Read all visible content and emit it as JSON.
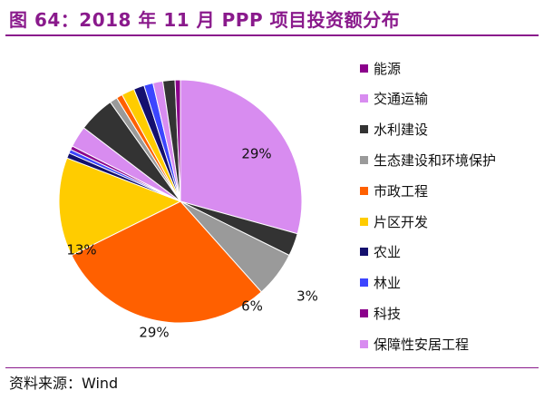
{
  "title": "图 64：2018 年 11 月 PPP 项目投资额分布",
  "source": "资料来源：Wind",
  "chart_data": {
    "type": "pie",
    "title": "图 64：2018 年 11 月 PPP 项目投资额分布",
    "start_angle_deg": 0,
    "direction": "clockwise",
    "legend_position": "right",
    "slices": [
      {
        "name": "保障性安居工程",
        "value": 29,
        "color": "#d88cf0",
        "label": "29%"
      },
      {
        "name": "水利建设",
        "value": 3,
        "color": "#333333",
        "label": "3%"
      },
      {
        "name": "生态建设和环境保护",
        "value": 6,
        "color": "#9a9a9a",
        "label": "6%"
      },
      {
        "name": "市政工程",
        "value": 29,
        "color": "#ff6000",
        "label": "29%"
      },
      {
        "name": "片区开发",
        "value": 13,
        "color": "#ffcc00",
        "label": "13%"
      },
      {
        "name": "农业",
        "value": 0.7,
        "color": "#14106e",
        "label": ""
      },
      {
        "name": "林业",
        "value": 0.5,
        "color": "#3c45ff",
        "label": ""
      },
      {
        "name": "科技",
        "value": 0.5,
        "color": "#8b008b",
        "label": ""
      },
      {
        "name": "交通运输",
        "value": 2.8,
        "color": "#d88cf0",
        "label": ""
      },
      {
        "name": "水利建设",
        "value": 4.8,
        "color": "#333333",
        "label": ""
      },
      {
        "name": "生态建设和环境保护",
        "value": 1.0,
        "color": "#9a9a9a",
        "label": ""
      },
      {
        "name": "市政工程",
        "value": 0.8,
        "color": "#ff6000",
        "label": ""
      },
      {
        "name": "片区开发",
        "value": 1.7,
        "color": "#ffcc00",
        "label": ""
      },
      {
        "name": "农业",
        "value": 1.4,
        "color": "#14106e",
        "label": ""
      },
      {
        "name": "林业",
        "value": 1.2,
        "color": "#3c45ff",
        "label": ""
      },
      {
        "name": "交通运输",
        "value": 1.3,
        "color": "#d88cf0",
        "label": ""
      },
      {
        "name": "水利建设",
        "value": 1.6,
        "color": "#333333",
        "label": ""
      },
      {
        "name": "能源",
        "value": 0.7,
        "color": "#8b008b",
        "label": ""
      }
    ],
    "legend": [
      {
        "name": "能源",
        "color": "#8b008b"
      },
      {
        "name": "交通运输",
        "color": "#d88cf0"
      },
      {
        "name": "水利建设",
        "color": "#333333"
      },
      {
        "name": "生态建设和环境保护",
        "color": "#9a9a9a"
      },
      {
        "name": "市政工程",
        "color": "#ff6000"
      },
      {
        "name": "片区开发",
        "color": "#ffcc00"
      },
      {
        "name": "农业",
        "color": "#14106e"
      },
      {
        "name": "林业",
        "color": "#3c45ff"
      },
      {
        "name": "科技",
        "color": "#8b008b"
      },
      {
        "name": "保障性安居工程",
        "color": "#d88cf0"
      }
    ]
  }
}
